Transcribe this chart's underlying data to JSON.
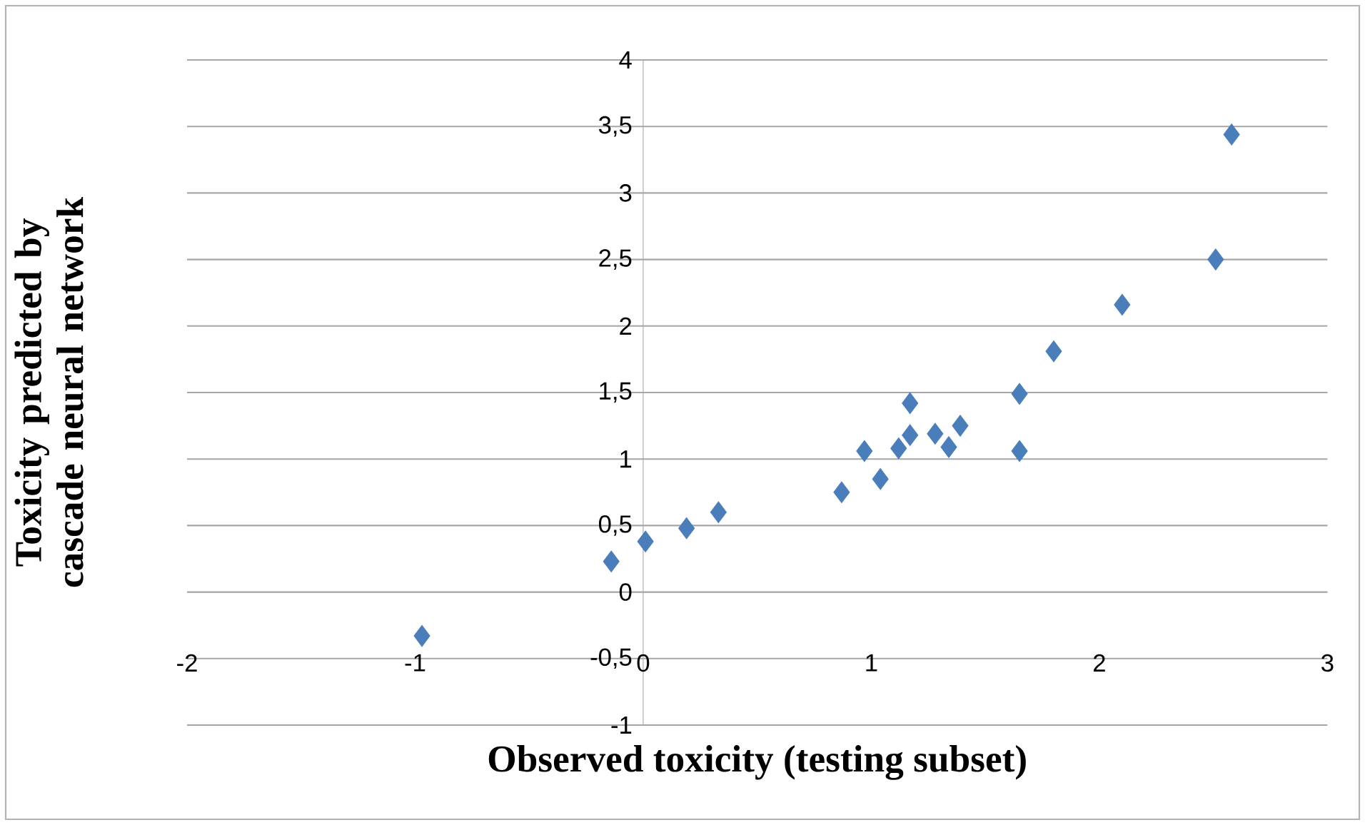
{
  "chart_data": {
    "type": "scatter",
    "xlabel": "Observed toxicity (testing subset)",
    "ylabel": "Toxicity predicted by cascade neural network",
    "xlim": [
      -2,
      3
    ],
    "ylim": [
      -1,
      4
    ],
    "xticks": [
      -2,
      -1,
      0,
      1,
      2,
      3
    ],
    "yticks": [
      -1,
      {
        "value": -0.5,
        "label": "-0,5"
      },
      0,
      {
        "value": 0.5,
        "label": "0,5"
      },
      1,
      {
        "value": 1.5,
        "label": "1,5"
      },
      2,
      {
        "value": 2.5,
        "label": "2,5"
      },
      3,
      {
        "value": 3.5,
        "label": "3,5"
      },
      4
    ],
    "grid": "y",
    "marker": "diamond",
    "series": [
      {
        "color": "#4a7ebb",
        "x": [
          -0.97,
          -0.14,
          0.01,
          0.19,
          0.33,
          0.87,
          0.97,
          1.04,
          1.12,
          1.17,
          1.17,
          1.28,
          1.34,
          1.39,
          1.65,
          1.65,
          1.8,
          2.1,
          2.51,
          2.58
        ],
        "values": [
          -0.33,
          0.23,
          0.38,
          0.48,
          0.6,
          0.75,
          1.06,
          0.85,
          1.08,
          1.18,
          1.42,
          1.19,
          1.09,
          1.25,
          1.49,
          1.06,
          1.81,
          2.16,
          2.5,
          3.44
        ]
      }
    ]
  }
}
